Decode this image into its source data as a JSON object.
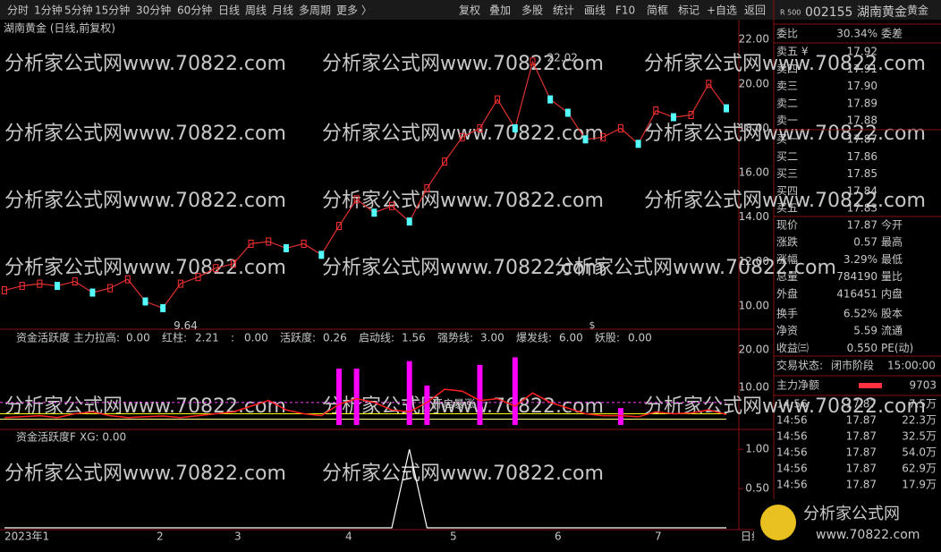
{
  "toolbar": {
    "periods": [
      "分时",
      "1分钟",
      "5分钟",
      "15分钟",
      "30分钟",
      "60分钟",
      "日线",
      "周线",
      "月线",
      "多周期",
      "更多 〉"
    ],
    "buttons": [
      "复权",
      "叠加",
      "多股",
      "统计",
      "画线",
      "F10",
      "简框",
      "标记",
      "+自选",
      "返回"
    ]
  },
  "watermark": "分析家公式网www.70822.com",
  "logo": {
    "name": "分析家公式网",
    "url": "www.70822.com"
  },
  "main_chart": {
    "title": "湖南黄金 (日线,前复权)",
    "ylim": [
      9.07,
      22.57
    ],
    "yticks": [
      {
        "value": 22,
        "label": "22.00"
      },
      {
        "value": 20,
        "label": "20.00"
      },
      {
        "value": 18,
        "label": "18.00"
      },
      {
        "value": 16,
        "label": "16.00"
      },
      {
        "value": 14,
        "label": "14.00"
      },
      {
        "value": 12,
        "label": "12.00"
      },
      {
        "value": 10,
        "label": "10.00"
      }
    ],
    "high_label": "22.02",
    "low_label": "9.64",
    "signal": "$",
    "close": [
      10.7,
      10.9,
      11.0,
      10.9,
      11.1,
      10.6,
      10.8,
      11.2,
      10.2,
      9.9,
      11.0,
      11.3,
      11.7,
      11.9,
      12.8,
      12.9,
      12.6,
      12.8,
      12.3,
      13.6,
      14.8,
      14.2,
      14.5,
      13.8,
      15.3,
      16.5,
      17.6,
      18.0,
      19.3,
      18.0,
      21.0,
      19.3,
      18.7,
      17.5,
      17.6,
      18.0,
      17.3,
      18.8,
      18.5,
      18.6,
      20.0,
      18.9
    ]
  },
  "indicator1": {
    "title": "资金活跃度",
    "ylim": [
      -0.7,
      25
    ],
    "yticks": [
      {
        "value": 20,
        "label": "20.00"
      },
      {
        "value": 10,
        "label": "10.00"
      }
    ],
    "items": [
      {
        "name": "主力拉高:",
        "label": "0.00",
        "color": "#ffff00"
      },
      {
        "name": "红柱:",
        "label": "2.21",
        "color": "#ff3030"
      },
      {
        "name": ":",
        "label": "0.00",
        "color": "#ff00ff"
      },
      {
        "name": "活跃度:",
        "label": "0.26",
        "color": "#40ff40"
      },
      {
        "name": "启动线:",
        "label": "1.56",
        "value": 1.56,
        "color": "#ffff80"
      },
      {
        "name": "强势线:",
        "label": "3.00",
        "value": 3,
        "color": "#ffff00"
      },
      {
        "name": "爆发线:",
        "label": "6.00",
        "value": 6,
        "color": "#ff40ff"
      },
      {
        "name": "妖股:",
        "label": "0.00",
        "color": "#ffff00"
      }
    ],
    "line": [
      2.0,
      2.2,
      2.5,
      2.0,
      3.0,
      3.5,
      2.5,
      2.0,
      2.2,
      2.4,
      2.0,
      2.5,
      3.0,
      3.5,
      5.0,
      6.5,
      4.0,
      3.0,
      2.5,
      5.5,
      7.0,
      6.0,
      4.0,
      3.5,
      6.0,
      9.5,
      9.0,
      6.5,
      7.0,
      5.0,
      8.5,
      6.0,
      4.5,
      3.0,
      2.5,
      2.5,
      2.2,
      3.5,
      3.0,
      3.2,
      4.0,
      2.8
    ],
    "bars": [
      null,
      null,
      null,
      null,
      null,
      null,
      null,
      null,
      null,
      null,
      null,
      null,
      null,
      null,
      null,
      null,
      null,
      null,
      null,
      15,
      15,
      null,
      null,
      17,
      10.5,
      null,
      null,
      16,
      null,
      18,
      null,
      null,
      null,
      null,
      null,
      4.5,
      null,
      null,
      null,
      null,
      null,
      null
    ],
    "annotation": "开启暴涨"
  },
  "indicator2": {
    "title": "资金活跃度F",
    "xg": "XG: 0.00",
    "ylim": [
      0,
      1.23
    ],
    "yticks": [
      {
        "value": 1,
        "label": "1.00"
      },
      {
        "value": 0.5,
        "label": "0.50"
      }
    ],
    "line": [
      0,
      0,
      0,
      0,
      0,
      0,
      0,
      0,
      0,
      0,
      0,
      0,
      0,
      0,
      0,
      0,
      0,
      0,
      0,
      0,
      0,
      0,
      0,
      1,
      0,
      0,
      0,
      0,
      0,
      0,
      0,
      0,
      0,
      0,
      0,
      0,
      0,
      0,
      0,
      0,
      0,
      0
    ]
  },
  "x_labels": [
    "2023年1",
    "2",
    "3",
    "4",
    "5",
    "6",
    "7",
    "日线"
  ],
  "quote": {
    "badge": "R 500",
    "code": "002155",
    "name": "湖南黄金",
    "sector": "黄金",
    "ratio": [
      "委比",
      "30.34%",
      "委差"
    ],
    "asks": [
      [
        "卖五 ¥",
        "17.92"
      ],
      [
        "卖四",
        "17.91"
      ],
      [
        "卖三",
        "17.90"
      ],
      [
        "卖二",
        "17.89"
      ],
      [
        "卖一",
        "17.88"
      ]
    ],
    "bids": [
      [
        "买一",
        "17.87"
      ],
      [
        "买二",
        "17.86"
      ],
      [
        "买三",
        "17.85"
      ],
      [
        "买四",
        "17.84"
      ],
      [
        "买五",
        "17.83"
      ]
    ],
    "stats": [
      [
        "现价",
        "17.87",
        "今开"
      ],
      [
        "涨跌",
        "0.57",
        "最高"
      ],
      [
        "涨幅",
        "3.29%",
        "最低"
      ],
      [
        "总量",
        "784190",
        "量比"
      ],
      [
        "外盘",
        "416451",
        "内盘"
      ],
      [
        "换手",
        "6.52%",
        "股本"
      ],
      [
        "净资",
        "5.59",
        "流通"
      ],
      [
        "收益㈢",
        "0.550",
        "PE(动)"
      ]
    ],
    "status": [
      "交易状态:",
      "闭市阶段",
      "15:00:00"
    ],
    "net": [
      "主力净额",
      "9703"
    ],
    "trades": [
      [
        "14:56",
        "17.87",
        "7.5万"
      ],
      [
        "14:56",
        "17.87",
        "22.3万"
      ],
      [
        "14:56",
        "17.87",
        "32.5万"
      ],
      [
        "14:56",
        "17.87",
        "54.0万"
      ],
      [
        "14:56",
        "17.87",
        "62.9万"
      ],
      [
        "14:56",
        "17.87",
        "17.9万"
      ]
    ]
  }
}
